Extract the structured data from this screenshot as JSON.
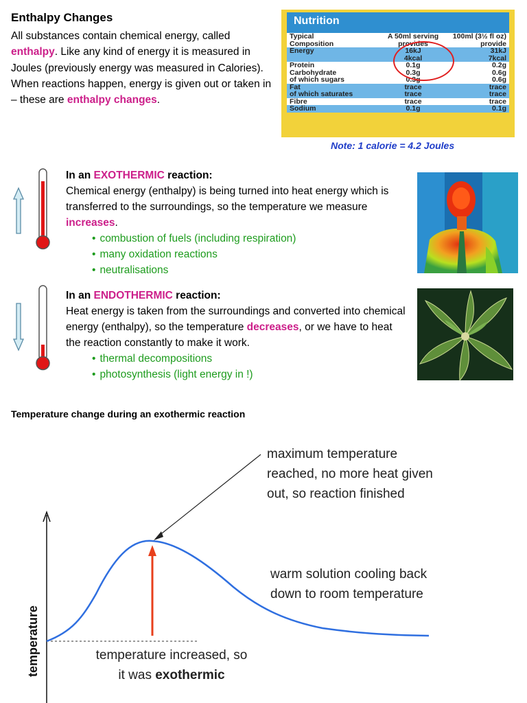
{
  "header": {
    "title": "Enthalpy Changes",
    "intro_1": "All substances contain chemical energy, called ",
    "intro_enthalpy": "enthalpy",
    "intro_2": ". Like any kind of energy it is measured in Joules (previously energy was measured in Calories).  When reactions happen, energy is given out or taken in – these are ",
    "intro_changes": "enthalpy changes",
    "intro_3": "."
  },
  "nutrition": {
    "title": "Nutrition",
    "rows": [
      {
        "name": "Typical",
        "serving": "A 50ml serving",
        "per100": "100ml (3½ fl oz)",
        "blue": false
      },
      {
        "name": "Composition",
        "serving": "provides",
        "per100": "provide",
        "blue": false
      },
      {
        "name": "Energy",
        "serving": "16kJ",
        "per100": "31kJ",
        "blue": true
      },
      {
        "name": "",
        "serving": "4kcal",
        "per100": "7kcal",
        "blue": true
      },
      {
        "name": "Protein",
        "serving": "0.1g",
        "per100": "0.2g",
        "blue": false
      },
      {
        "name": "Carbohydrate",
        "serving": "0.3g",
        "per100": "0.6g",
        "blue": false
      },
      {
        "name": "of which sugars",
        "serving": "0.3g",
        "per100": "0.6g",
        "blue": false
      },
      {
        "name": "Fat",
        "serving": "trace",
        "per100": "trace",
        "blue": true
      },
      {
        "name": "of which saturates",
        "serving": "trace",
        "per100": "trace",
        "blue": true
      },
      {
        "name": "Fibre",
        "serving": "trace",
        "per100": "trace",
        "blue": false
      },
      {
        "name": "Sodium",
        "serving": "0.1g",
        "per100": "0.1g",
        "blue": true
      }
    ],
    "note": "Note:  1 calorie = 4.2 Joules"
  },
  "exo": {
    "head_1": "In an ",
    "head_key": "EXOTHERMIC",
    "head_2": " reaction:",
    "body_1": "Chemical energy (enthalpy) is being turned into heat energy which is transferred to the surroundings, so the temperature we measure ",
    "body_key": "increases",
    "body_2": ".",
    "bullets": [
      "combustion of fuels (including respiration)",
      "many oxidation reactions",
      "neutralisations"
    ]
  },
  "endo": {
    "head_1": "In an ",
    "head_key": "ENDOTHERMIC",
    "head_2": " reaction:",
    "body_1": "Heat energy is taken from the surroundings and converted into chemical energy (enthalpy), so the temperature ",
    "body_key": "decreases",
    "body_2": ", or we have to heat the reaction constantly to make it work.",
    "bullets": [
      "thermal decompositions",
      "photosynthesis  (light energy in !)"
    ]
  },
  "graph": {
    "title": "Temperature change during an exothermic reaction",
    "ylabel": "temperature",
    "annotation_max": [
      "maximum temperature",
      "reached, no more heat given",
      "out, so reaction finished"
    ],
    "annotation_cool": [
      "warm solution cooling back",
      "down to room temperature"
    ],
    "annotation_rise_1": "temperature increased, so",
    "annotation_rise_2": "it was ",
    "annotation_rise_key": "exothermic",
    "line_color": "#2f6fe0",
    "arrow_color": "#e8401c"
  },
  "colors": {
    "highlight": "#cc1f8a",
    "bullet": "#1e9c1e",
    "note": "#1e3cc8"
  }
}
